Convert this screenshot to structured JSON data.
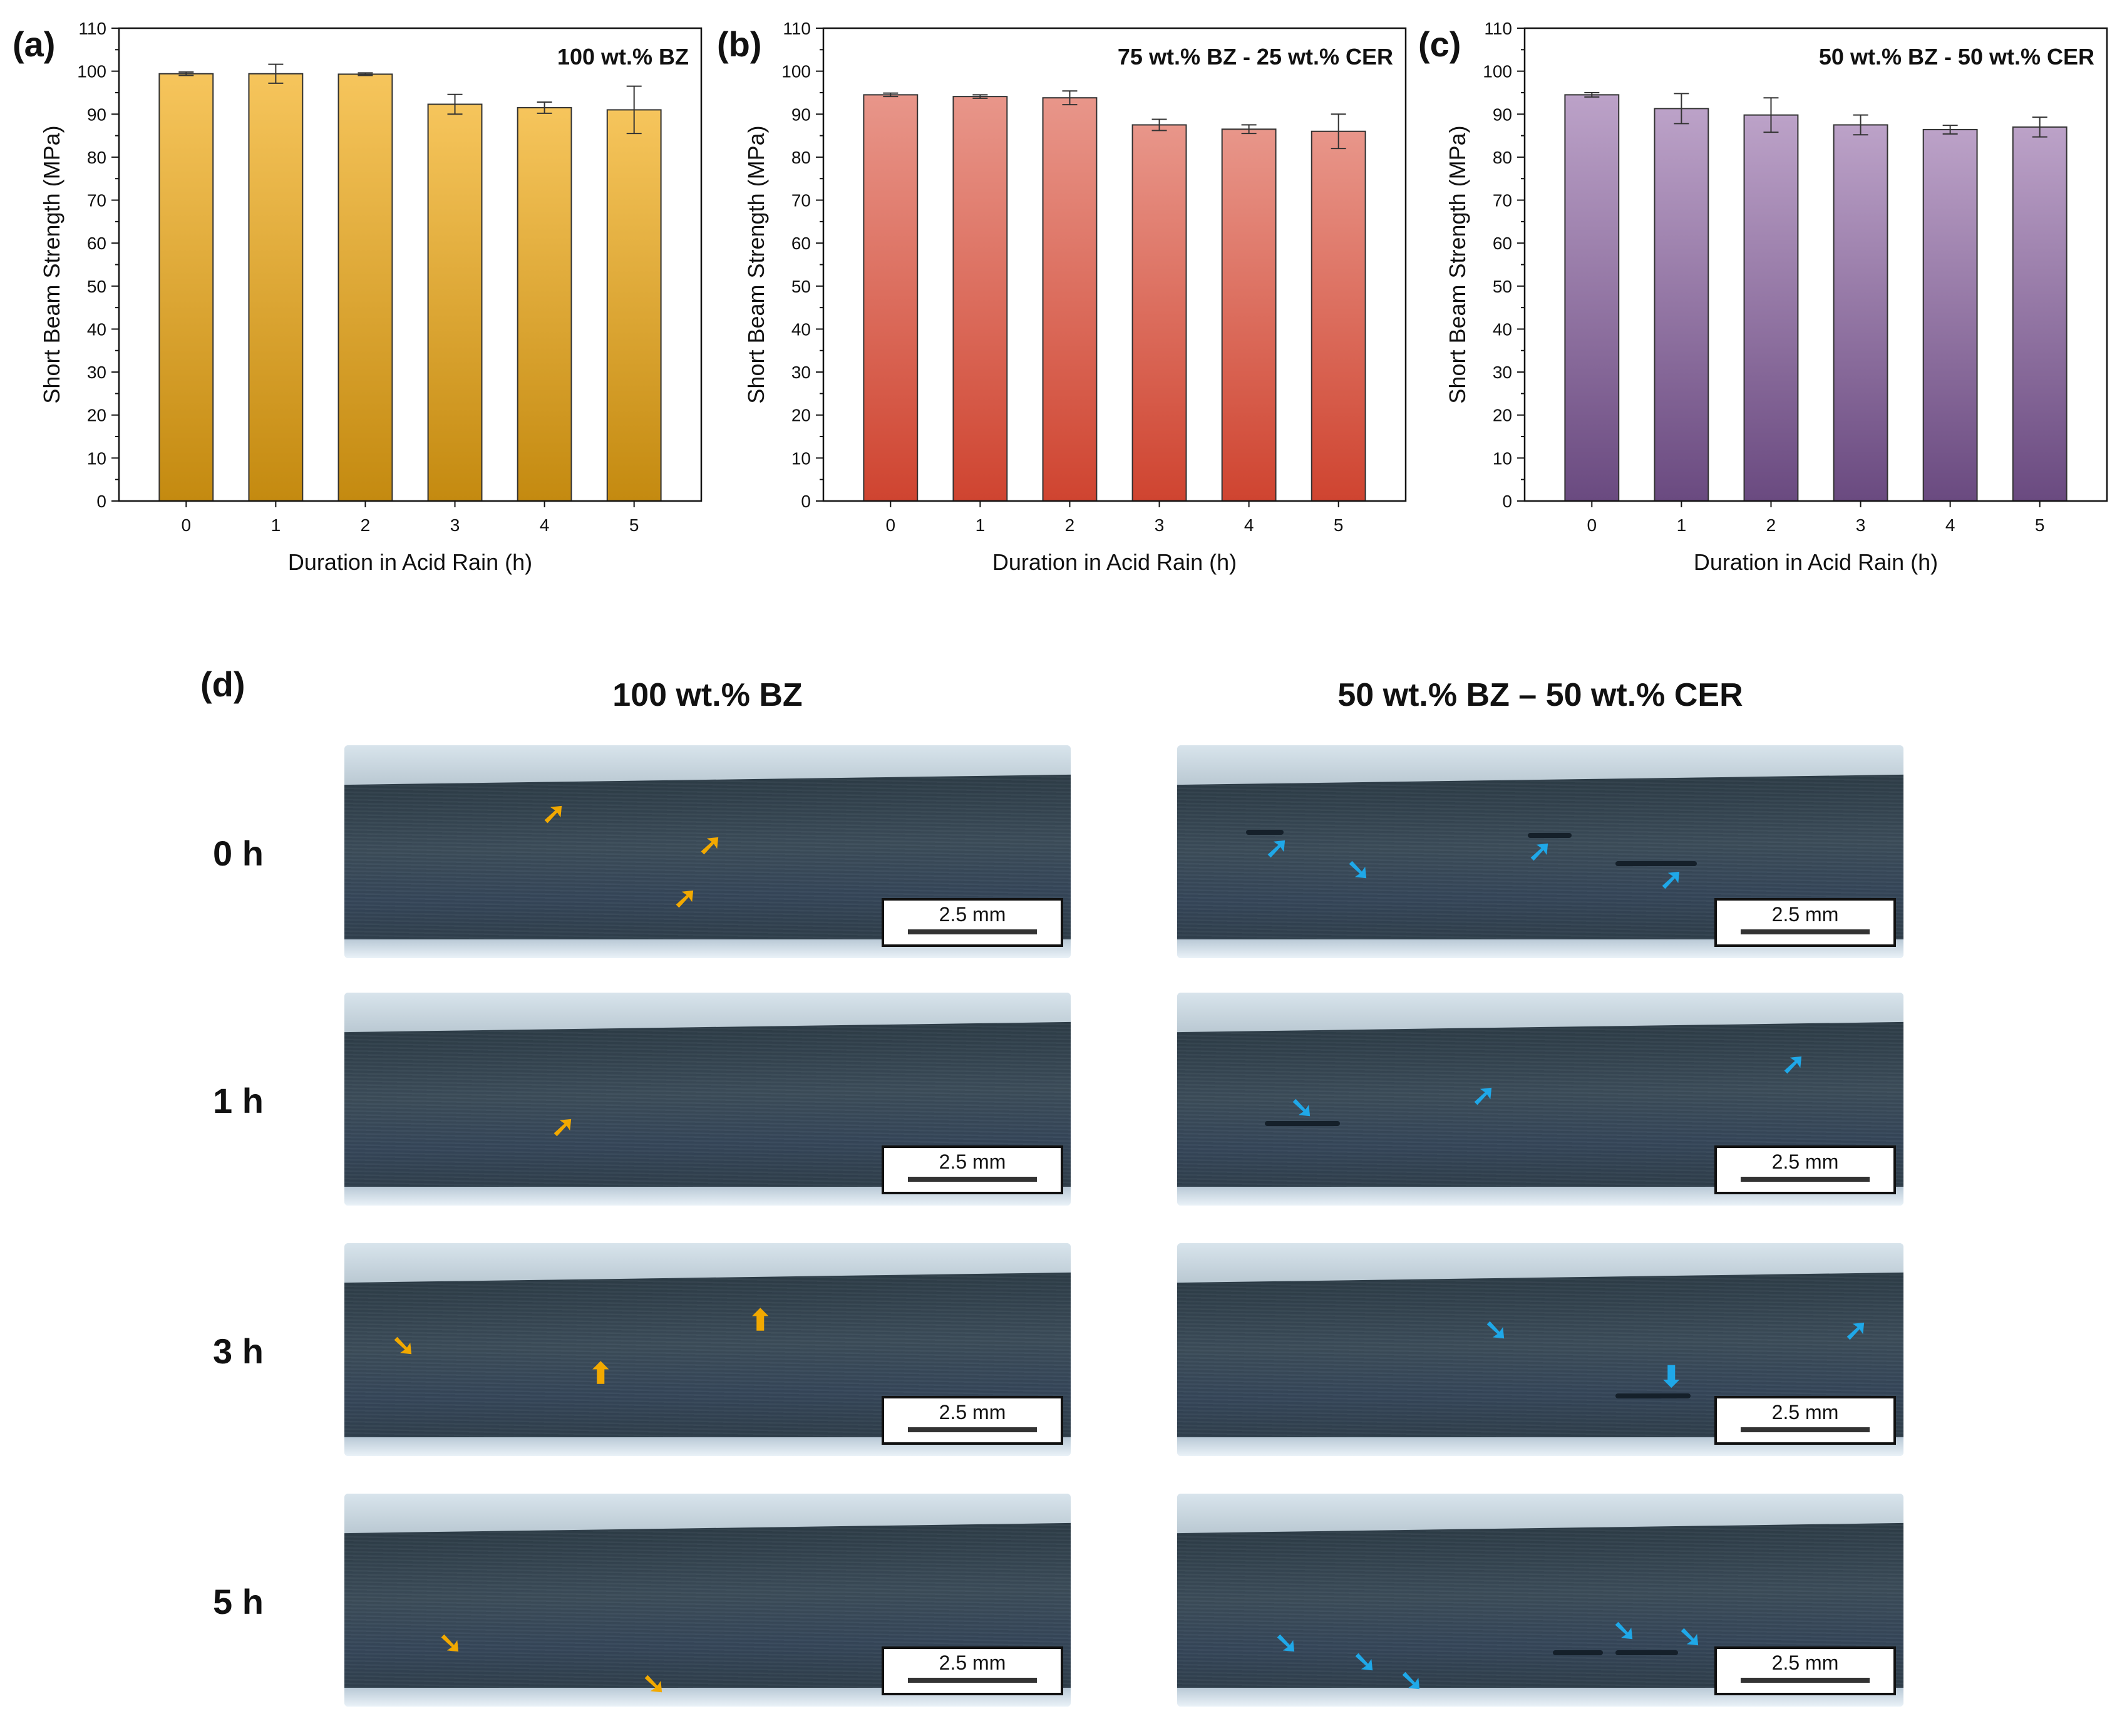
{
  "figure": {
    "panel_d_label": "(d)",
    "photo_columns": [
      "100 wt.% BZ",
      "50 wt.% BZ – 50 wt.% CER"
    ],
    "photo_rows": [
      "0 h",
      "1 h",
      "3 h",
      "5 h"
    ],
    "scalebar_text": "2.5 mm",
    "arrow_colors": {
      "bz": "#f2a900",
      "blend": "#1fa8e8"
    }
  },
  "chart_data": [
    {
      "type": "bar",
      "panel": "(a)",
      "title": "100 wt.% BZ",
      "xlabel": "Duration in Acid Rain (h)",
      "ylabel": "Short Beam Strength (MPa)",
      "categories": [
        "0",
        "1",
        "2",
        "3",
        "4",
        "5"
      ],
      "values": [
        99.4,
        99.4,
        99.3,
        92.3,
        91.5,
        91.0
      ],
      "errors": [
        0.4,
        2.2,
        0.3,
        2.3,
        1.3,
        5.5
      ],
      "ylim": [
        0,
        110
      ],
      "yticks": [
        "0",
        "10",
        "20",
        "30",
        "40",
        "50",
        "60",
        "70",
        "80",
        "90",
        "100",
        "110"
      ],
      "color_top": "#f6c55c",
      "color_bottom": "#c48a10"
    },
    {
      "type": "bar",
      "panel": "(b)",
      "title": "75 wt.% BZ - 25 wt.% CER",
      "xlabel": "Duration in Acid Rain (h)",
      "ylabel": "Short Beam Strength (MPa)",
      "categories": [
        "0",
        "1",
        "2",
        "3",
        "4",
        "5"
      ],
      "values": [
        94.5,
        94.1,
        93.8,
        87.5,
        86.5,
        86.0
      ],
      "errors": [
        0.4,
        0.4,
        1.6,
        1.3,
        1.0,
        4.0
      ],
      "ylim": [
        0,
        110
      ],
      "yticks": [
        "0",
        "10",
        "20",
        "30",
        "40",
        "50",
        "60",
        "70",
        "80",
        "90",
        "100",
        "110"
      ],
      "color_top": "#e8968a",
      "color_bottom": "#cf4430"
    },
    {
      "type": "bar",
      "panel": "(c)",
      "title": "50 wt.% BZ - 50 wt.% CER",
      "xlabel": "Duration in Acid Rain (h)",
      "ylabel": "Short Beam Strength (MPa)",
      "categories": [
        "0",
        "1",
        "2",
        "3",
        "4",
        "5"
      ],
      "values": [
        94.5,
        91.3,
        89.8,
        87.5,
        86.4,
        87.0
      ],
      "errors": [
        0.5,
        3.5,
        4.0,
        2.3,
        1.0,
        2.3
      ],
      "ylim": [
        0,
        110
      ],
      "yticks": [
        "0",
        "10",
        "20",
        "30",
        "40",
        "50",
        "60",
        "70",
        "80",
        "90",
        "100",
        "110"
      ],
      "color_top": "#bca2c8",
      "color_bottom": "#6a4a80"
    }
  ]
}
